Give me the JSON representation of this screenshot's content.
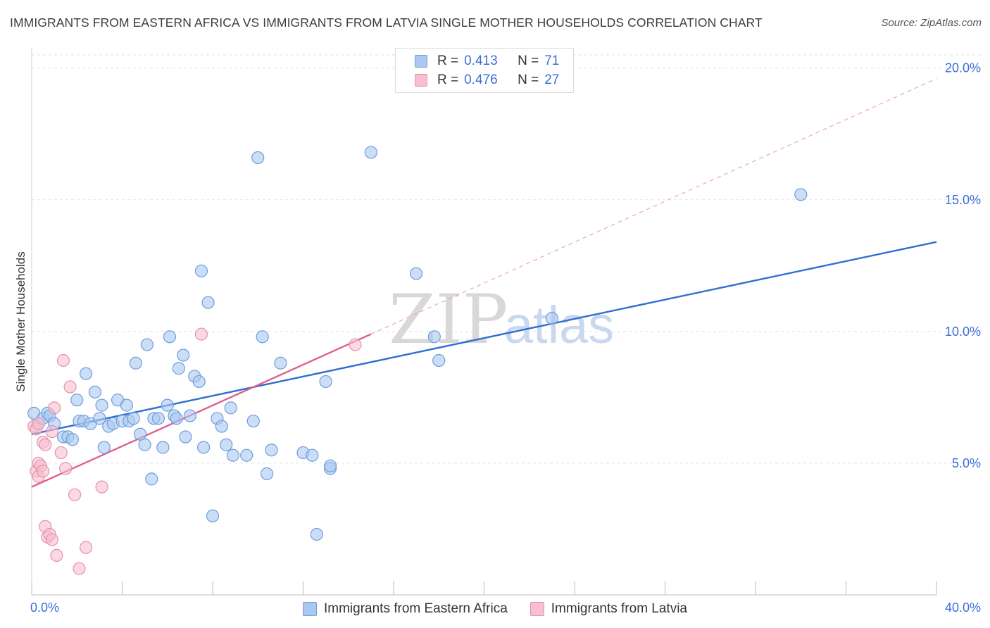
{
  "header": {
    "title": "IMMIGRANTS FROM EASTERN AFRICA VS IMMIGRANTS FROM LATVIA SINGLE MOTHER HOUSEHOLDS CORRELATION CHART",
    "source": "Source: ZipAtlas.com"
  },
  "watermark": {
    "zip": "ZIP",
    "atlas": "atlas"
  },
  "colors": {
    "blue_fill": "#aac8f0",
    "blue_stroke": "#6d9ddf",
    "blue_line": "#2f6fd0",
    "pink_fill": "#f7bfd0",
    "pink_stroke": "#e890ac",
    "pink_line": "#e0608c",
    "axis_text": "#3a6fd8"
  },
  "legend_top": {
    "rows": [
      {
        "r_label": "R =",
        "r_value": "0.413",
        "n_label": "N =",
        "n_value": "71"
      },
      {
        "r_label": "R =",
        "r_value": "0.476",
        "n_label": "N =",
        "n_value": "27"
      }
    ]
  },
  "chart_data": {
    "type": "scatter",
    "title": "IMMIGRANTS FROM EASTERN AFRICA VS IMMIGRANTS FROM LATVIA SINGLE MOTHER HOUSEHOLDS CORRELATION CHART",
    "xlabel": "",
    "ylabel": "Single Mother Households",
    "xlim": [
      0,
      40
    ],
    "ylim": [
      0,
      20.5
    ],
    "x_tick_labels": [
      "0.0%",
      "40.0%"
    ],
    "y_ticks": [
      5,
      10,
      15,
      20
    ],
    "y_tick_labels": [
      "5.0%",
      "10.0%",
      "15.0%",
      "20.0%"
    ],
    "grid": true,
    "series": [
      {
        "name": "Immigrants from Eastern Africa",
        "color": "blue",
        "r": 0.413,
        "n": 71,
        "trend": {
          "x0": 0,
          "y0": 6.1,
          "x1": 40,
          "y1": 13.4
        },
        "points": [
          [
            0.1,
            6.9
          ],
          [
            0.3,
            6.5
          ],
          [
            0.5,
            6.7
          ],
          [
            0.7,
            6.9
          ],
          [
            0.8,
            6.8
          ],
          [
            1.0,
            6.5
          ],
          [
            1.4,
            6.0
          ],
          [
            1.6,
            6.0
          ],
          [
            1.8,
            5.9
          ],
          [
            2.0,
            7.4
          ],
          [
            2.1,
            6.6
          ],
          [
            2.3,
            6.6
          ],
          [
            2.4,
            8.4
          ],
          [
            2.6,
            6.5
          ],
          [
            2.8,
            7.7
          ],
          [
            3.0,
            6.7
          ],
          [
            3.1,
            7.2
          ],
          [
            3.2,
            5.6
          ],
          [
            3.4,
            6.4
          ],
          [
            3.6,
            6.5
          ],
          [
            3.8,
            7.4
          ],
          [
            4.0,
            6.6
          ],
          [
            4.2,
            7.2
          ],
          [
            4.3,
            6.6
          ],
          [
            4.5,
            6.7
          ],
          [
            4.6,
            8.8
          ],
          [
            4.8,
            6.1
          ],
          [
            5.0,
            5.7
          ],
          [
            5.1,
            9.5
          ],
          [
            5.3,
            4.4
          ],
          [
            5.4,
            6.7
          ],
          [
            5.6,
            6.7
          ],
          [
            5.8,
            5.6
          ],
          [
            6.0,
            7.2
          ],
          [
            6.1,
            9.8
          ],
          [
            6.3,
            6.8
          ],
          [
            6.4,
            6.7
          ],
          [
            6.5,
            8.6
          ],
          [
            6.7,
            9.1
          ],
          [
            6.8,
            6.0
          ],
          [
            7.0,
            6.8
          ],
          [
            7.2,
            8.3
          ],
          [
            7.4,
            8.1
          ],
          [
            7.5,
            12.3
          ],
          [
            7.6,
            5.6
          ],
          [
            7.8,
            11.1
          ],
          [
            8.0,
            3.0
          ],
          [
            8.2,
            6.7
          ],
          [
            8.4,
            6.4
          ],
          [
            8.6,
            5.7
          ],
          [
            8.8,
            7.1
          ],
          [
            8.9,
            5.3
          ],
          [
            9.5,
            5.3
          ],
          [
            9.8,
            6.6
          ],
          [
            10.0,
            16.6
          ],
          [
            10.2,
            9.8
          ],
          [
            10.4,
            4.6
          ],
          [
            10.6,
            5.5
          ],
          [
            11.0,
            8.8
          ],
          [
            12.0,
            5.4
          ],
          [
            12.4,
            5.3
          ],
          [
            12.6,
            2.3
          ],
          [
            13.0,
            8.1
          ],
          [
            13.2,
            4.8
          ],
          [
            13.2,
            4.9
          ],
          [
            15.0,
            16.8
          ],
          [
            17.0,
            12.2
          ],
          [
            17.8,
            9.8
          ],
          [
            18.0,
            8.9
          ],
          [
            23.0,
            10.5
          ],
          [
            34.0,
            15.2
          ]
        ]
      },
      {
        "name": "Immigrants from Latvia",
        "color": "pink",
        "r": 0.476,
        "n": 27,
        "trend": {
          "x0": 0,
          "y0": 4.1,
          "x1": 15,
          "y1": 9.9
        },
        "trend_extension": {
          "x0": 15,
          "y0": 9.9,
          "x1": 40,
          "y1": 19.6
        },
        "points": [
          [
            0.1,
            6.4
          ],
          [
            0.2,
            6.3
          ],
          [
            0.3,
            6.5
          ],
          [
            0.2,
            4.7
          ],
          [
            0.3,
            5.0
          ],
          [
            0.3,
            4.5
          ],
          [
            0.4,
            4.9
          ],
          [
            0.5,
            5.8
          ],
          [
            0.5,
            4.7
          ],
          [
            0.6,
            5.7
          ],
          [
            0.6,
            2.6
          ],
          [
            0.7,
            2.2
          ],
          [
            0.8,
            2.3
          ],
          [
            0.9,
            2.1
          ],
          [
            0.9,
            6.2
          ],
          [
            1.0,
            7.1
          ],
          [
            1.1,
            1.5
          ],
          [
            1.3,
            5.4
          ],
          [
            1.4,
            8.9
          ],
          [
            1.5,
            4.8
          ],
          [
            1.7,
            7.9
          ],
          [
            1.9,
            3.8
          ],
          [
            2.1,
            1.0
          ],
          [
            2.4,
            1.8
          ],
          [
            3.1,
            4.1
          ],
          [
            7.5,
            9.9
          ],
          [
            14.3,
            9.5
          ]
        ]
      }
    ]
  },
  "bottom_legend": {
    "items": [
      {
        "label": "Immigrants from Eastern Africa"
      },
      {
        "label": "Immigrants from Latvia"
      }
    ]
  }
}
